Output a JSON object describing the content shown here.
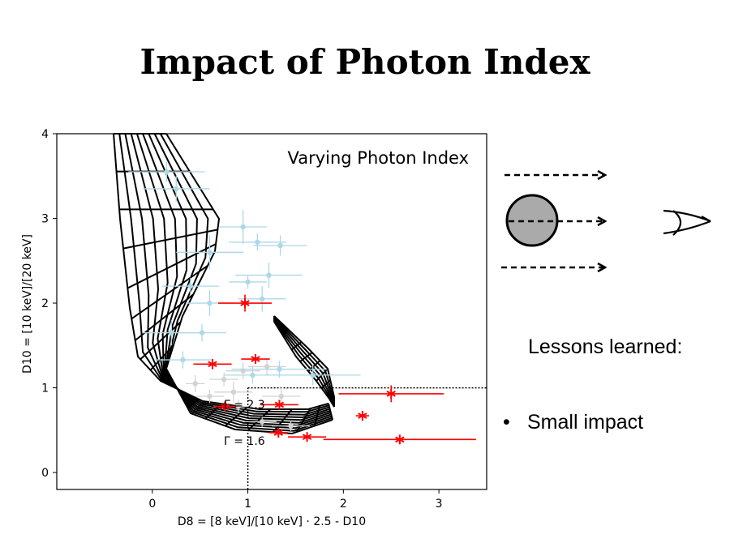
{
  "slide": {
    "title": "Impact of Photon Index",
    "lessons_heading": "Lessons learned:",
    "bullets": [
      {
        "symbol": "•",
        "text": "Small impact"
      }
    ]
  },
  "chart_data": {
    "type": "scatter",
    "title": "Varying Photon Index",
    "xlabel": "D8 = [8 keV]/[10 keV] · 2.5 - D10",
    "ylabel": "D10 = [10 keV]/[20 keV]",
    "xlim": [
      -1.0,
      3.5
    ],
    "ylim": [
      -0.2,
      4.0
    ],
    "xticks": [
      0,
      1,
      2,
      3
    ],
    "yticks": [
      0,
      1,
      2,
      3,
      4
    ],
    "annotations": [
      "Γ = 2.3",
      "Γ = 1.6"
    ],
    "threshold_lines": {
      "x": 1.0,
      "y": 1.0
    },
    "series": [
      {
        "color": "#ff0000",
        "marker": "star",
        "points": [
          {
            "x": 0.97,
            "y": 2.0,
            "xerr": 0.28,
            "yerr": 0.1
          },
          {
            "x": 0.63,
            "y": 1.28,
            "xerr": 0.2,
            "yerr": 0.06
          },
          {
            "x": 1.08,
            "y": 1.34,
            "xerr": 0.15,
            "yerr": 0.05
          },
          {
            "x": 0.76,
            "y": 0.78,
            "xerr": 0.12,
            "yerr": 0.05
          },
          {
            "x": 1.33,
            "y": 0.8,
            "xerr": 0.2,
            "yerr": 0.05
          },
          {
            "x": 2.5,
            "y": 0.93,
            "xerr": 0.55,
            "yerr": 0.1
          },
          {
            "x": 2.2,
            "y": 0.67,
            "xerr": 0.07,
            "yerr": 0.04
          },
          {
            "x": 1.32,
            "y": 0.47,
            "xerr": 0.1,
            "yerr": 0.04
          },
          {
            "x": 1.62,
            "y": 0.42,
            "xerr": 0.2,
            "yerr": 0.04
          },
          {
            "x": 2.59,
            "y": 0.39,
            "xerr": 0.8,
            "yerr": 0.05
          }
        ]
      },
      {
        "color": "#add8e6",
        "marker": "dot",
        "points": [
          {
            "x": 0.15,
            "y": 3.55,
            "xerr": 0.4,
            "yerr": 0.12
          },
          {
            "x": 0.25,
            "y": 3.35,
            "xerr": 0.35,
            "yerr": 0.15
          },
          {
            "x": 0.95,
            "y": 2.9,
            "xerr": 0.25,
            "yerr": 0.2
          },
          {
            "x": 1.1,
            "y": 2.72,
            "xerr": 0.3,
            "yerr": 0.1
          },
          {
            "x": 1.34,
            "y": 2.68,
            "xerr": 0.28,
            "yerr": 0.12
          },
          {
            "x": 0.6,
            "y": 2.6,
            "xerr": 0.35,
            "yerr": 0.2
          },
          {
            "x": 1.0,
            "y": 2.25,
            "xerr": 0.2,
            "yerr": 0.08
          },
          {
            "x": 1.22,
            "y": 2.33,
            "xerr": 0.35,
            "yerr": 0.15
          },
          {
            "x": 0.4,
            "y": 2.2,
            "xerr": 0.3,
            "yerr": 0.1
          },
          {
            "x": 0.6,
            "y": 2.0,
            "xerr": 0.25,
            "yerr": 0.15
          },
          {
            "x": 1.15,
            "y": 2.05,
            "xerr": 0.25,
            "yerr": 0.15
          },
          {
            "x": 0.2,
            "y": 1.65,
            "xerr": 0.3,
            "yerr": 0.15
          },
          {
            "x": 0.52,
            "y": 1.65,
            "xerr": 0.25,
            "yerr": 0.1
          },
          {
            "x": 0.32,
            "y": 1.33,
            "xerr": 0.3,
            "yerr": 0.1
          },
          {
            "x": 1.33,
            "y": 1.22,
            "xerr": 0.5,
            "yerr": 0.1
          },
          {
            "x": 1.68,
            "y": 1.15,
            "xerr": 0.5,
            "yerr": 0.12
          },
          {
            "x": 1.05,
            "y": 1.15,
            "xerr": 0.3,
            "yerr": 0.1
          }
        ]
      },
      {
        "color": "#d3d3d3",
        "marker": "dot",
        "points": [
          {
            "x": 0.45,
            "y": 1.05,
            "xerr": 0.1,
            "yerr": 0.1
          },
          {
            "x": 0.75,
            "y": 1.1,
            "xerr": 0.15,
            "yerr": 0.08
          },
          {
            "x": 0.85,
            "y": 0.95,
            "xerr": 0.2,
            "yerr": 0.12
          },
          {
            "x": 0.95,
            "y": 1.2,
            "xerr": 0.18,
            "yerr": 0.1
          },
          {
            "x": 1.2,
            "y": 1.25,
            "xerr": 0.2,
            "yerr": 0.1
          },
          {
            "x": 0.6,
            "y": 0.9,
            "xerr": 0.15,
            "yerr": 0.08
          },
          {
            "x": 1.35,
            "y": 0.9,
            "xerr": 0.2,
            "yerr": 0.1
          },
          {
            "x": 0.9,
            "y": 0.78,
            "xerr": 0.15,
            "yerr": 0.08
          },
          {
            "x": 1.15,
            "y": 0.6,
            "xerr": 0.15,
            "yerr": 0.06
          },
          {
            "x": 1.45,
            "y": 0.55,
            "xerr": 0.2,
            "yerr": 0.06
          }
        ]
      }
    ]
  },
  "diagram": {
    "sphere_color": "#aaaaaa",
    "arrow_count": 3
  }
}
